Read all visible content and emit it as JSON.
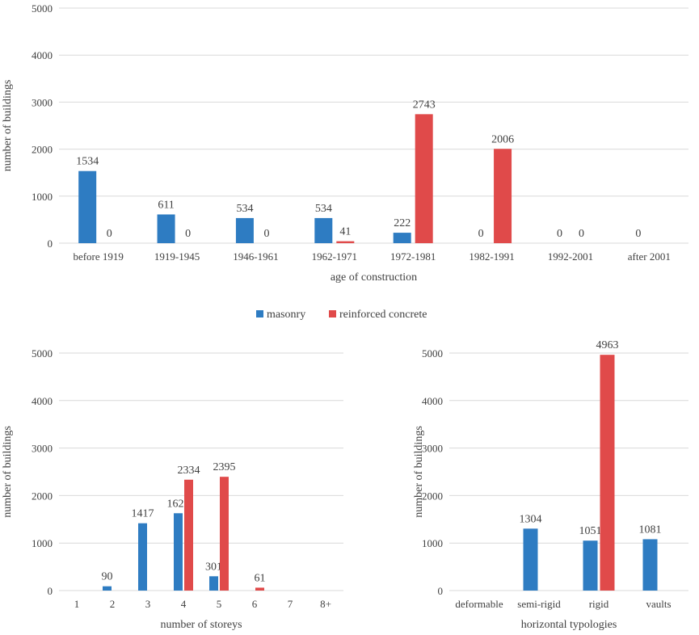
{
  "legend": {
    "items": [
      {
        "name": "masonry",
        "color": "#2E7CC2"
      },
      {
        "name": "reinforced concrete",
        "color": "#E04A4A"
      }
    ]
  },
  "chart_data": [
    {
      "type": "bar",
      "title": "",
      "xlabel": "age of construction",
      "ylabel": "number of buildings",
      "ylim": [
        0,
        5000
      ],
      "yticks": [
        0,
        1000,
        2000,
        3000,
        4000,
        5000
      ],
      "categories": [
        "before 1919",
        "1919-1945",
        "1946-1961",
        "1962-1971",
        "1972-1981",
        "1982-1991",
        "1992-2001",
        "after 2001"
      ],
      "series": [
        {
          "name": "masonry",
          "values": [
            1534,
            611,
            534,
            534,
            222,
            0,
            0,
            0
          ]
        },
        {
          "name": "reinforced concrete",
          "values": [
            0,
            0,
            0,
            41,
            2743,
            2006,
            0,
            null
          ]
        }
      ]
    },
    {
      "type": "bar",
      "title": "",
      "xlabel": "number of storeys",
      "ylabel": "number of buildings",
      "ylim": [
        0,
        5000
      ],
      "yticks": [
        0,
        1000,
        2000,
        3000,
        4000,
        5000
      ],
      "categories": [
        "1",
        "2",
        "3",
        "4",
        "5",
        "6",
        "7",
        "8+"
      ],
      "series": [
        {
          "name": "masonry",
          "values": [
            null,
            90,
            1417,
            1628,
            301,
            null,
            null,
            null
          ]
        },
        {
          "name": "reinforced concrete",
          "values": [
            null,
            null,
            null,
            2334,
            2395,
            61,
            null,
            null
          ]
        }
      ]
    },
    {
      "type": "bar",
      "title": "",
      "xlabel": "horizontal typologies",
      "ylabel": "number of buildings",
      "ylim": [
        0,
        5000
      ],
      "yticks": [
        0,
        1000,
        2000,
        3000,
        4000,
        5000
      ],
      "categories": [
        "deformable",
        "semi-rigid",
        "rigid",
        "vaults"
      ],
      "series": [
        {
          "name": "masonry",
          "values": [
            null,
            1304,
            1051,
            1081
          ]
        },
        {
          "name": "reinforced concrete",
          "values": [
            null,
            null,
            4963,
            null
          ]
        }
      ]
    }
  ]
}
